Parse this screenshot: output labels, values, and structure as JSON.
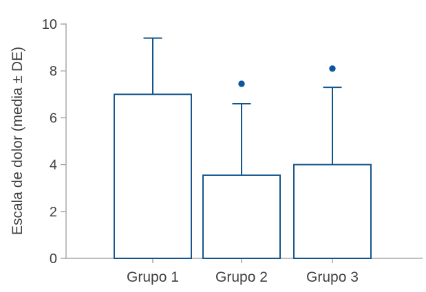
{
  "chart_data": {
    "type": "bar",
    "title": "",
    "categories": [
      "Grupo 1",
      "Grupo 2",
      "Grupo 3"
    ],
    "values": [
      7.0,
      3.55,
      4.0
    ],
    "sd_upper": [
      2.4,
      3.05,
      3.3
    ],
    "error_bar_tops": [
      9.4,
      6.6,
      7.3
    ],
    "outlier_points": [
      null,
      7.45,
      8.1
    ],
    "xlabel": "",
    "ylabel": "Escala de dolor (media ± DE)",
    "ylim": [
      0,
      10
    ],
    "yticks": [
      0,
      2,
      4,
      6,
      8,
      10
    ],
    "grid": false,
    "legend": null,
    "colors": {
      "bar_fill": "#ffffff",
      "bar_stroke": "#14568c",
      "marker": "#0b56a4",
      "axis": "#a7a9aa",
      "text": "#414042"
    }
  }
}
